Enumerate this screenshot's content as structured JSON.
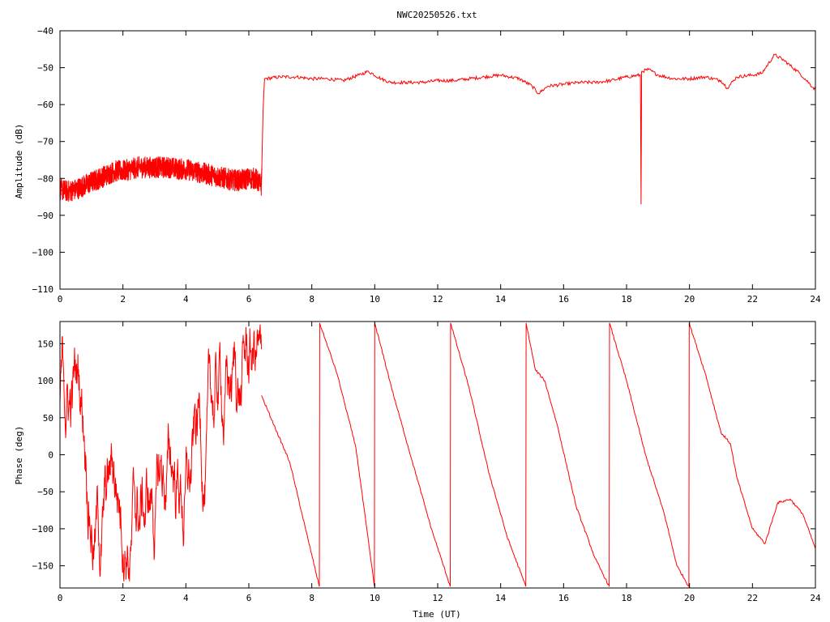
{
  "title": "NWC20250526.txt",
  "colors": {
    "trace": "#ff0000",
    "axis": "#000000",
    "background": "#ffffff"
  },
  "chart_data": [
    {
      "type": "line",
      "title": "NWC20250526.txt",
      "xlabel": "",
      "ylabel": "Amplitude (dB)",
      "xlim": [
        0,
        24
      ],
      "ylim": [
        -110,
        -40
      ],
      "xticks": [
        0,
        2,
        4,
        6,
        8,
        10,
        12,
        14,
        16,
        18,
        20,
        22,
        24
      ],
      "yticks": [
        -40,
        -50,
        -60,
        -70,
        -80,
        -90,
        -100,
        -110
      ],
      "xtick_labels": [
        "0",
        "2",
        "4",
        "6",
        "8",
        "10",
        "12",
        "14",
        "16",
        "18",
        "20",
        "22",
        "24"
      ],
      "ytick_labels": [
        "−40",
        "−50",
        "−60",
        "−70",
        "−80",
        "−90",
        "−100",
        "−110"
      ],
      "grid": false,
      "legend": "none",
      "series": [
        {
          "x": [
            0,
            0.25,
            0.5,
            0.75,
            1.0,
            1.25,
            1.5,
            1.75,
            2.0,
            2.25,
            2.5,
            2.75,
            3.0,
            3.25,
            3.5,
            3.75,
            4.0,
            4.25,
            4.5,
            4.75,
            5.0,
            5.25,
            5.5,
            5.75,
            6.0,
            6.2,
            6.4,
            6.45,
            6.5,
            7.0,
            7.5,
            8.0,
            8.5,
            9.0,
            9.5,
            9.8,
            10.2,
            10.5,
            11.0,
            11.5,
            12.0,
            12.5,
            13.0,
            13.5,
            14.0,
            14.3,
            14.6,
            15.0,
            15.2,
            15.5,
            16.0,
            16.5,
            17.0,
            17.5,
            18.0,
            18.44,
            18.46,
            18.48,
            18.7,
            19.0,
            19.5,
            20.0,
            20.5,
            21.0,
            21.2,
            21.5,
            22.0,
            22.3,
            22.7,
            23.0,
            23.5,
            24.0
          ],
          "y": [
            -83,
            -83.5,
            -83,
            -82,
            -81,
            -80,
            -79,
            -78,
            -78,
            -77.5,
            -77,
            -77,
            -77,
            -77,
            -77,
            -77.5,
            -77.5,
            -78,
            -78.5,
            -79,
            -79.5,
            -80,
            -80.5,
            -80.5,
            -80,
            -80,
            -82,
            -62,
            -53,
            -52.5,
            -52.5,
            -53,
            -53,
            -53.5,
            -52,
            -51,
            -53,
            -54,
            -54,
            -54,
            -53.5,
            -53.5,
            -53,
            -52.5,
            -52,
            -52.5,
            -53,
            -55,
            -57,
            -55,
            -54.5,
            -54,
            -54,
            -53.5,
            -52.5,
            -52,
            -87,
            -51,
            -50.5,
            -52,
            -53,
            -53,
            -52.5,
            -53.5,
            -55.5,
            -52.5,
            -52,
            -51.5,
            -46.5,
            -48,
            -51.5,
            -56
          ]
        }
      ]
    },
    {
      "type": "line",
      "title": "",
      "xlabel": "Time (UT)",
      "ylabel": "Phase (deg)",
      "xlim": [
        0,
        24
      ],
      "ylim": [
        -180,
        180
      ],
      "xticks": [
        0,
        2,
        4,
        6,
        8,
        10,
        12,
        14,
        16,
        18,
        20,
        22,
        24
      ],
      "yticks": [
        150,
        100,
        50,
        0,
        -50,
        -100,
        -150
      ],
      "xtick_labels": [
        "0",
        "2",
        "4",
        "6",
        "8",
        "10",
        "12",
        "14",
        "16",
        "18",
        "20",
        "22",
        "24"
      ],
      "ytick_labels": [
        "150",
        "100",
        "50",
        "0",
        "−50",
        "−100",
        "−150"
      ],
      "grid": false,
      "legend": "none",
      "series": [
        {
          "x": [
            6.4,
            6.8,
            7.3,
            7.8,
            8.24,
            8.25,
            8.8,
            9.4,
            9.99,
            10.0,
            10.6,
            11.2,
            11.8,
            12.4,
            12.41,
            13.0,
            13.6,
            14.2,
            14.8,
            14.81,
            15.1,
            15.4,
            15.8,
            16.4,
            17.0,
            17.45,
            17.46,
            18.0,
            18.6,
            19.2,
            19.6,
            19.98,
            19.99,
            20.5,
            21.0,
            21.3,
            21.5,
            22.0,
            22.4,
            22.8,
            23.2,
            23.6,
            24.0
          ],
          "y": [
            80,
            40,
            -10,
            -100,
            -178,
            178,
            110,
            10,
            -178,
            178,
            80,
            -10,
            -100,
            -178,
            178,
            90,
            -20,
            -110,
            -178,
            178,
            115,
            100,
            40,
            -70,
            -140,
            -178,
            178,
            100,
            0,
            -80,
            -150,
            -178,
            178,
            110,
            30,
            15,
            -30,
            -100,
            -120,
            -65,
            -60,
            -80,
            -127
          ]
        }
      ]
    }
  ]
}
